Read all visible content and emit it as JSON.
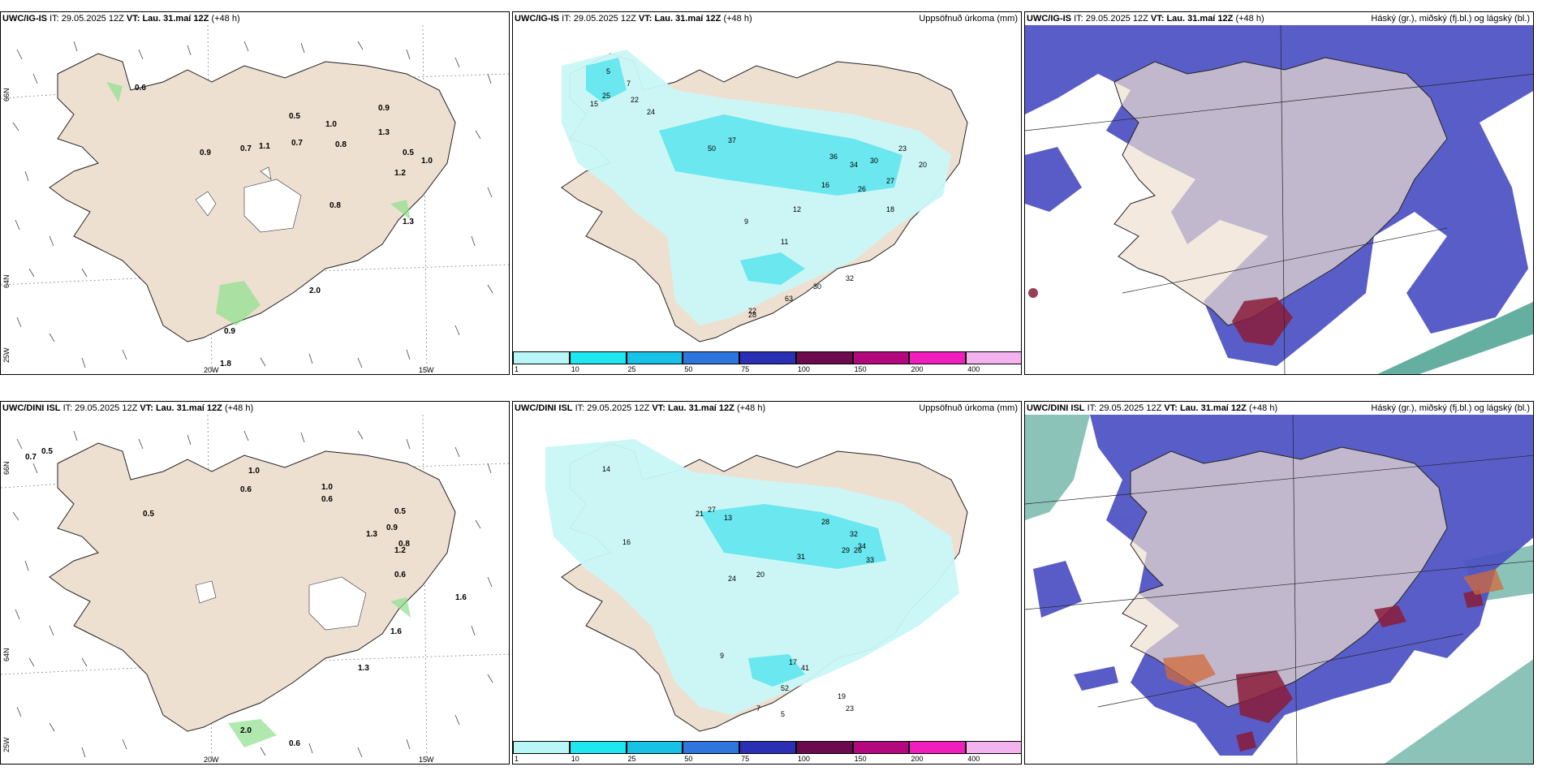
{
  "panels": [
    {
      "model": "UWC/IG-IS",
      "it_label": "IT:",
      "it_value": "29.05.2025 12Z",
      "vt_label": "VT:",
      "vt_value": "Lau. 31.maí 12Z",
      "lead": "(+48 h)",
      "right_title": ""
    },
    {
      "model": "UWC/IG-IS",
      "it_label": "IT:",
      "it_value": "29.05.2025 12Z",
      "vt_label": "VT:",
      "vt_value": "Lau. 31.maí 12Z",
      "lead": "(+48 h)",
      "right_title": "Uppsöfnuð úrkoma (mm)"
    },
    {
      "model": "UWC/IG-IS",
      "it_label": "IT:",
      "it_value": "29.05.2025 12Z",
      "vt_label": "VT:",
      "vt_value": "Lau. 31.maí 12Z",
      "lead": "(+48 h)",
      "right_title": "Háský (gr.), miðský (fj.bl.) og lágský (bl.)"
    },
    {
      "model": "UWC/DINI ISL",
      "it_label": "IT:",
      "it_value": "29.05.2025 12Z",
      "vt_label": "VT:",
      "vt_value": "Lau. 31.maí 12Z",
      "lead": "(+48 h)",
      "right_title": ""
    },
    {
      "model": "UWC/DINI ISL",
      "it_label": "IT:",
      "it_value": "29.05.2025 12Z",
      "vt_label": "VT:",
      "vt_value": "Lau. 31.maí 12Z",
      "lead": "(+48 h)",
      "right_title": "Uppsöfnuð úrkoma (mm)"
    },
    {
      "model": "UWC/DINI ISL",
      "it_label": "IT:",
      "it_value": "29.05.2025 12Z",
      "vt_label": "VT:",
      "vt_value": "Lau. 31.maí 12Z",
      "lead": "(+48 h)",
      "right_title": "Háský (gr.), miðský (fj.bl.) og lágský (bl.)"
    }
  ],
  "axes": {
    "lon_20": "20W",
    "lon_15": "15W",
    "lat_66": "66N",
    "lat_64": "64N",
    "lon_25": "25W"
  },
  "colorbar": {
    "labels": [
      "1",
      "10",
      "25",
      "50",
      "75",
      "100",
      "150",
      "200",
      "400"
    ],
    "colors": [
      "#b9f6f7",
      "#1ee7f0",
      "#18c1e6",
      "#2e76dd",
      "#2b2fb4",
      "#6b0a4e",
      "#b4087f",
      "#f01ebd",
      "#f2b3ef"
    ]
  },
  "colors": {
    "land": "#eee0d1",
    "precip_light": "#c9f7f7",
    "precip_mid": "#5fe5ee",
    "cloud_low": "#4b4fc2",
    "cloud_mid": "#8a1c3a",
    "cloud_high": "#3d9b88"
  },
  "precip_values_top": [
    "5",
    "7",
    "15",
    "25",
    "22",
    "24",
    "37",
    "50",
    "34",
    "36",
    "30",
    "27",
    "26",
    "20",
    "18",
    "23",
    "16",
    "12",
    "9",
    "11",
    "63",
    "22",
    "28",
    "32",
    "30"
  ],
  "precip_values_bottom": [
    "14",
    "13",
    "27",
    "21",
    "28",
    "32",
    "34",
    "29",
    "26",
    "33",
    "20",
    "24",
    "31",
    "41",
    "52",
    "23",
    "19",
    "5",
    "17",
    "9",
    "7",
    "16"
  ],
  "wind_values_top": [
    "0.6",
    "0.5",
    "0.9",
    "0.7",
    "1.1",
    "0.7",
    "1.0",
    "0.8",
    "0.9",
    "1.3",
    "0.5",
    "1.0",
    "1.2",
    "0.8",
    "1.3",
    "2.0",
    "1.8",
    "0.9"
  ],
  "wind_values_bottom": [
    "0.7",
    "0.5",
    "1.0",
    "0.6",
    "0.5",
    "1.0",
    "0.6",
    "0.5",
    "1.3",
    "0.9",
    "1.2",
    "0.8",
    "0.6",
    "1.6",
    "1.6",
    "1.3",
    "2.0",
    "0.6"
  ]
}
